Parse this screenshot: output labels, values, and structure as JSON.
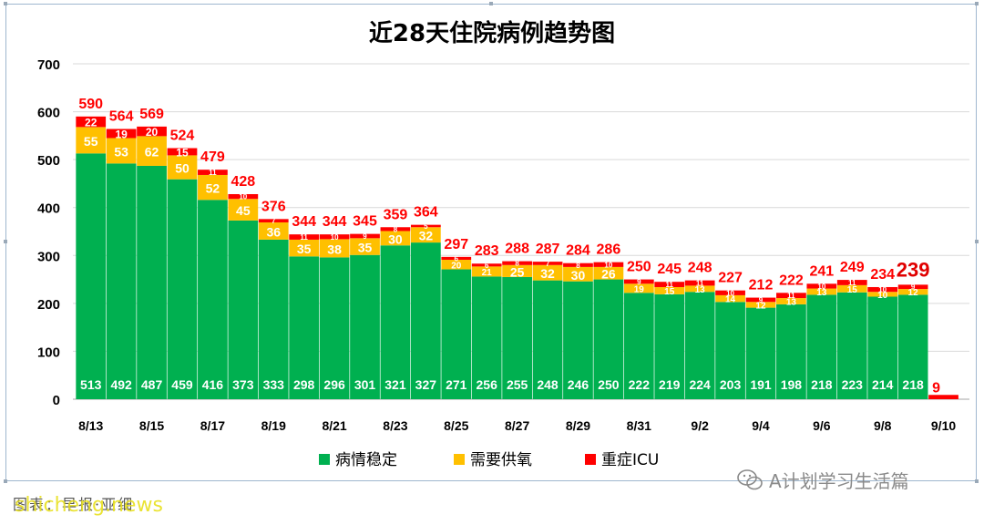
{
  "chart_data": {
    "type": "bar",
    "stacked": true,
    "title": "近28天住院病例趋势图",
    "ylim": [
      0,
      700
    ],
    "yticks": [
      0,
      100,
      200,
      300,
      400,
      500,
      600,
      700
    ],
    "grid": true,
    "legend_position": "bottom",
    "categories": [
      "8/13",
      "8/14",
      "8/15",
      "8/16",
      "8/17",
      "8/18",
      "8/19",
      "8/20",
      "8/21",
      "8/22",
      "8/23",
      "8/24",
      "8/25",
      "8/26",
      "8/27",
      "8/28",
      "8/29",
      "8/30",
      "8/31",
      "9/1",
      "9/2",
      "9/3",
      "9/4",
      "9/5",
      "9/6",
      "9/7",
      "9/8",
      "9/9",
      "9/10"
    ],
    "x_tick_labels": [
      "8/13",
      "",
      "8/15",
      "",
      "8/17",
      "",
      "8/19",
      "",
      "8/21",
      "",
      "8/23",
      "",
      "8/25",
      "",
      "8/27",
      "",
      "8/29",
      "",
      "8/31",
      "",
      "9/2",
      "",
      "9/4",
      "",
      "9/6",
      "",
      "9/8",
      "",
      "9/10"
    ],
    "series": [
      {
        "name": "病情稳定",
        "color": "#00b050",
        "values": [
          513,
          492,
          487,
          459,
          416,
          373,
          333,
          298,
          296,
          301,
          321,
          327,
          271,
          256,
          255,
          248,
          246,
          250,
          222,
          219,
          224,
          203,
          191,
          198,
          218,
          223,
          214,
          218,
          null
        ]
      },
      {
        "name": "需要供氧",
        "color": "#ffc000",
        "values": [
          55,
          53,
          62,
          50,
          52,
          45,
          36,
          35,
          38,
          35,
          30,
          32,
          20,
          21,
          25,
          32,
          30,
          26,
          19,
          15,
          13,
          14,
          12,
          13,
          13,
          15,
          10,
          12,
          null
        ]
      },
      {
        "name": "重症ICU",
        "color": "#ff0000",
        "values": [
          22,
          19,
          20,
          15,
          11,
          10,
          7,
          11,
          10,
          9,
          8,
          5,
          6,
          6,
          8,
          7,
          8,
          10,
          9,
          11,
          11,
          10,
          9,
          11,
          10,
          11,
          10,
          9,
          9
        ]
      }
    ],
    "totals": [
      590,
      564,
      569,
      524,
      479,
      428,
      376,
      344,
      344,
      345,
      359,
      364,
      297,
      283,
      288,
      287,
      284,
      286,
      250,
      245,
      248,
      227,
      212,
      222,
      241,
      249,
      234,
      239,
      9
    ],
    "highlighted_total_index": 27
  },
  "watermark": {
    "text": "A计划学习生活篇"
  },
  "footer": {
    "source_text": "图表：早报·亚细",
    "site_text": "shicheng.news"
  }
}
